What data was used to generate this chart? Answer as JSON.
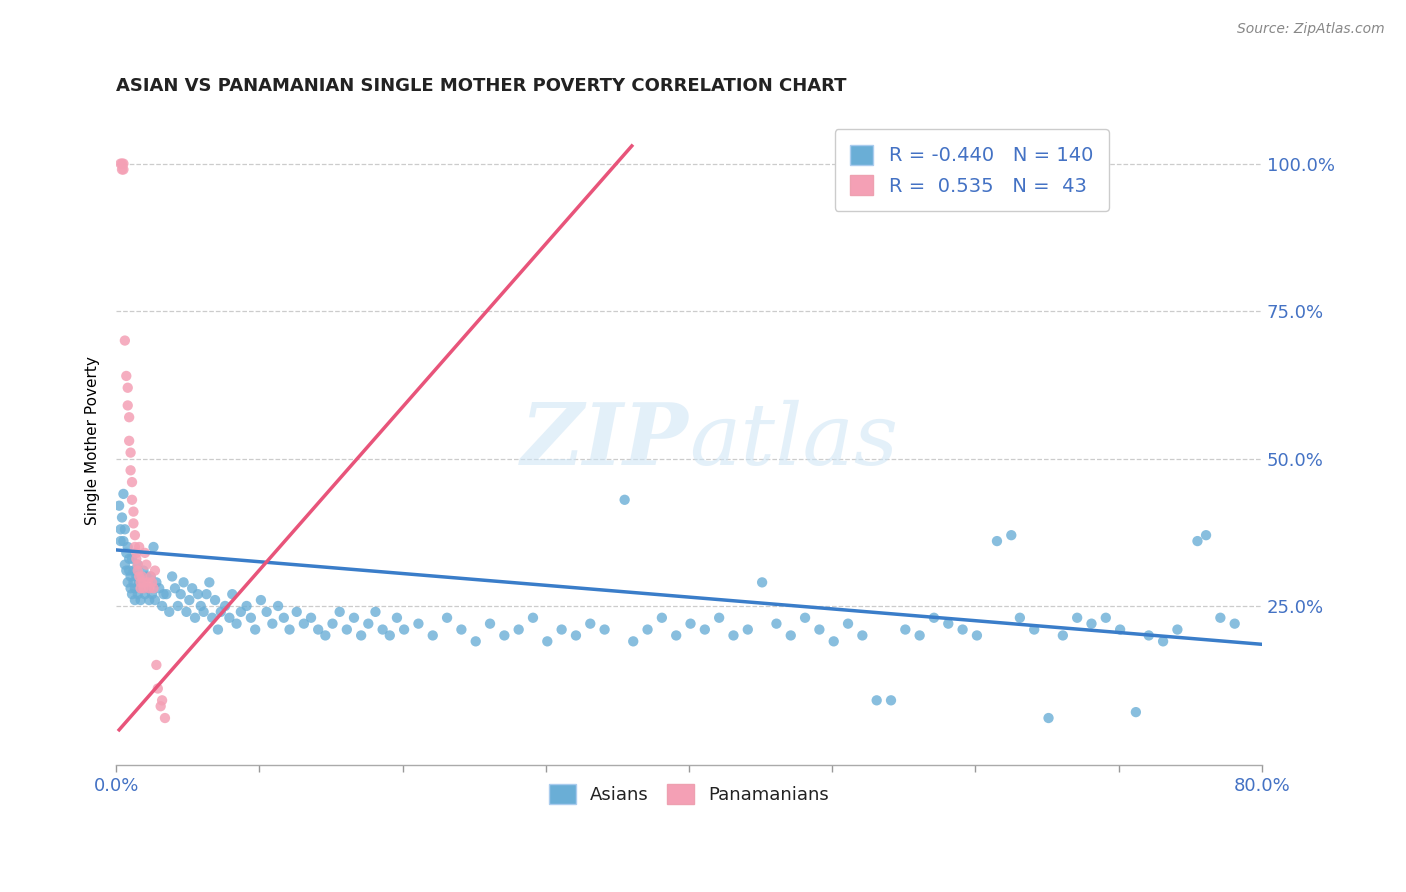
{
  "title": "ASIAN VS PANAMANIAN SINGLE MOTHER POVERTY CORRELATION CHART",
  "source": "Source: ZipAtlas.com",
  "ylabel": "Single Mother Poverty",
  "legend_asian_R": "-0.440",
  "legend_asian_N": "140",
  "legend_pan_R": "0.535",
  "legend_pan_N": "43",
  "asian_color": "#6aaed6",
  "pan_color": "#f4a0b5",
  "asian_line_color": "#3a7dc9",
  "pan_line_color": "#e8547a",
  "xlim": [
    0.0,
    0.8
  ],
  "ylim": [
    -0.02,
    1.08
  ],
  "asian_scatter": [
    [
      0.002,
      0.42
    ],
    [
      0.003,
      0.38
    ],
    [
      0.003,
      0.36
    ],
    [
      0.004,
      0.4
    ],
    [
      0.005,
      0.44
    ],
    [
      0.005,
      0.36
    ],
    [
      0.006,
      0.38
    ],
    [
      0.006,
      0.32
    ],
    [
      0.007,
      0.34
    ],
    [
      0.007,
      0.31
    ],
    [
      0.008,
      0.35
    ],
    [
      0.008,
      0.29
    ],
    [
      0.009,
      0.31
    ],
    [
      0.009,
      0.33
    ],
    [
      0.01,
      0.3
    ],
    [
      0.01,
      0.28
    ],
    [
      0.011,
      0.33
    ],
    [
      0.011,
      0.27
    ],
    [
      0.012,
      0.29
    ],
    [
      0.012,
      0.31
    ],
    [
      0.013,
      0.28
    ],
    [
      0.013,
      0.26
    ],
    [
      0.014,
      0.3
    ],
    [
      0.015,
      0.27
    ],
    [
      0.015,
      0.32
    ],
    [
      0.016,
      0.29
    ],
    [
      0.017,
      0.26
    ],
    [
      0.018,
      0.28
    ],
    [
      0.019,
      0.31
    ],
    [
      0.02,
      0.27
    ],
    [
      0.021,
      0.3
    ],
    [
      0.022,
      0.28
    ],
    [
      0.023,
      0.26
    ],
    [
      0.024,
      0.3
    ],
    [
      0.025,
      0.27
    ],
    [
      0.026,
      0.35
    ],
    [
      0.027,
      0.26
    ],
    [
      0.028,
      0.29
    ],
    [
      0.03,
      0.28
    ],
    [
      0.032,
      0.25
    ],
    [
      0.033,
      0.27
    ],
    [
      0.035,
      0.27
    ],
    [
      0.037,
      0.24
    ],
    [
      0.039,
      0.3
    ],
    [
      0.041,
      0.28
    ],
    [
      0.043,
      0.25
    ],
    [
      0.045,
      0.27
    ],
    [
      0.047,
      0.29
    ],
    [
      0.049,
      0.24
    ],
    [
      0.051,
      0.26
    ],
    [
      0.053,
      0.28
    ],
    [
      0.055,
      0.23
    ],
    [
      0.057,
      0.27
    ],
    [
      0.059,
      0.25
    ],
    [
      0.061,
      0.24
    ],
    [
      0.063,
      0.27
    ],
    [
      0.065,
      0.29
    ],
    [
      0.067,
      0.23
    ],
    [
      0.069,
      0.26
    ],
    [
      0.071,
      0.21
    ],
    [
      0.073,
      0.24
    ],
    [
      0.076,
      0.25
    ],
    [
      0.079,
      0.23
    ],
    [
      0.081,
      0.27
    ],
    [
      0.084,
      0.22
    ],
    [
      0.087,
      0.24
    ],
    [
      0.091,
      0.25
    ],
    [
      0.094,
      0.23
    ],
    [
      0.097,
      0.21
    ],
    [
      0.101,
      0.26
    ],
    [
      0.105,
      0.24
    ],
    [
      0.109,
      0.22
    ],
    [
      0.113,
      0.25
    ],
    [
      0.117,
      0.23
    ],
    [
      0.121,
      0.21
    ],
    [
      0.126,
      0.24
    ],
    [
      0.131,
      0.22
    ],
    [
      0.136,
      0.23
    ],
    [
      0.141,
      0.21
    ],
    [
      0.146,
      0.2
    ],
    [
      0.151,
      0.22
    ],
    [
      0.156,
      0.24
    ],
    [
      0.161,
      0.21
    ],
    [
      0.166,
      0.23
    ],
    [
      0.171,
      0.2
    ],
    [
      0.176,
      0.22
    ],
    [
      0.181,
      0.24
    ],
    [
      0.186,
      0.21
    ],
    [
      0.191,
      0.2
    ],
    [
      0.196,
      0.23
    ],
    [
      0.201,
      0.21
    ],
    [
      0.211,
      0.22
    ],
    [
      0.221,
      0.2
    ],
    [
      0.231,
      0.23
    ],
    [
      0.241,
      0.21
    ],
    [
      0.251,
      0.19
    ],
    [
      0.261,
      0.22
    ],
    [
      0.271,
      0.2
    ],
    [
      0.281,
      0.21
    ],
    [
      0.291,
      0.23
    ],
    [
      0.301,
      0.19
    ],
    [
      0.311,
      0.21
    ],
    [
      0.321,
      0.2
    ],
    [
      0.331,
      0.22
    ],
    [
      0.341,
      0.21
    ],
    [
      0.355,
      0.43
    ],
    [
      0.361,
      0.19
    ],
    [
      0.371,
      0.21
    ],
    [
      0.381,
      0.23
    ],
    [
      0.391,
      0.2
    ],
    [
      0.401,
      0.22
    ],
    [
      0.411,
      0.21
    ],
    [
      0.421,
      0.23
    ],
    [
      0.431,
      0.2
    ],
    [
      0.441,
      0.21
    ],
    [
      0.451,
      0.29
    ],
    [
      0.461,
      0.22
    ],
    [
      0.471,
      0.2
    ],
    [
      0.481,
      0.23
    ],
    [
      0.491,
      0.21
    ],
    [
      0.501,
      0.19
    ],
    [
      0.511,
      0.22
    ],
    [
      0.521,
      0.2
    ],
    [
      0.531,
      0.09
    ],
    [
      0.541,
      0.09
    ],
    [
      0.551,
      0.21
    ],
    [
      0.561,
      0.2
    ],
    [
      0.571,
      0.23
    ],
    [
      0.581,
      0.22
    ],
    [
      0.591,
      0.21
    ],
    [
      0.601,
      0.2
    ],
    [
      0.615,
      0.36
    ],
    [
      0.625,
      0.37
    ],
    [
      0.631,
      0.23
    ],
    [
      0.641,
      0.21
    ],
    [
      0.651,
      0.06
    ],
    [
      0.661,
      0.2
    ],
    [
      0.671,
      0.23
    ],
    [
      0.681,
      0.22
    ],
    [
      0.691,
      0.23
    ],
    [
      0.701,
      0.21
    ],
    [
      0.712,
      0.07
    ],
    [
      0.721,
      0.2
    ],
    [
      0.731,
      0.19
    ],
    [
      0.741,
      0.21
    ],
    [
      0.755,
      0.36
    ],
    [
      0.761,
      0.37
    ],
    [
      0.771,
      0.23
    ],
    [
      0.781,
      0.22
    ]
  ],
  "pan_scatter": [
    [
      0.003,
      1.0
    ],
    [
      0.004,
      1.0
    ],
    [
      0.004,
      0.99
    ],
    [
      0.005,
      1.0
    ],
    [
      0.005,
      0.99
    ],
    [
      0.006,
      0.7
    ],
    [
      0.007,
      0.64
    ],
    [
      0.008,
      0.62
    ],
    [
      0.008,
      0.59
    ],
    [
      0.009,
      0.57
    ],
    [
      0.009,
      0.53
    ],
    [
      0.01,
      0.51
    ],
    [
      0.01,
      0.48
    ],
    [
      0.011,
      0.46
    ],
    [
      0.011,
      0.43
    ],
    [
      0.012,
      0.41
    ],
    [
      0.012,
      0.39
    ],
    [
      0.013,
      0.37
    ],
    [
      0.013,
      0.35
    ],
    [
      0.014,
      0.34
    ],
    [
      0.014,
      0.33
    ],
    [
      0.015,
      0.32
    ],
    [
      0.015,
      0.31
    ],
    [
      0.016,
      0.3
    ],
    [
      0.016,
      0.35
    ],
    [
      0.017,
      0.29
    ],
    [
      0.017,
      0.28
    ],
    [
      0.018,
      0.3
    ],
    [
      0.019,
      0.29
    ],
    [
      0.019,
      0.28
    ],
    [
      0.02,
      0.34
    ],
    [
      0.021,
      0.32
    ],
    [
      0.022,
      0.29
    ],
    [
      0.023,
      0.28
    ],
    [
      0.024,
      0.3
    ],
    [
      0.025,
      0.29
    ],
    [
      0.026,
      0.28
    ],
    [
      0.027,
      0.31
    ],
    [
      0.028,
      0.15
    ],
    [
      0.029,
      0.11
    ],
    [
      0.031,
      0.08
    ],
    [
      0.032,
      0.09
    ],
    [
      0.034,
      0.06
    ]
  ],
  "asian_trendline_x": [
    0.0,
    0.8
  ],
  "asian_trendline_y": [
    0.345,
    0.185
  ],
  "pan_trendline_x": [
    0.002,
    0.36
  ],
  "pan_trendline_y": [
    0.04,
    1.03
  ]
}
